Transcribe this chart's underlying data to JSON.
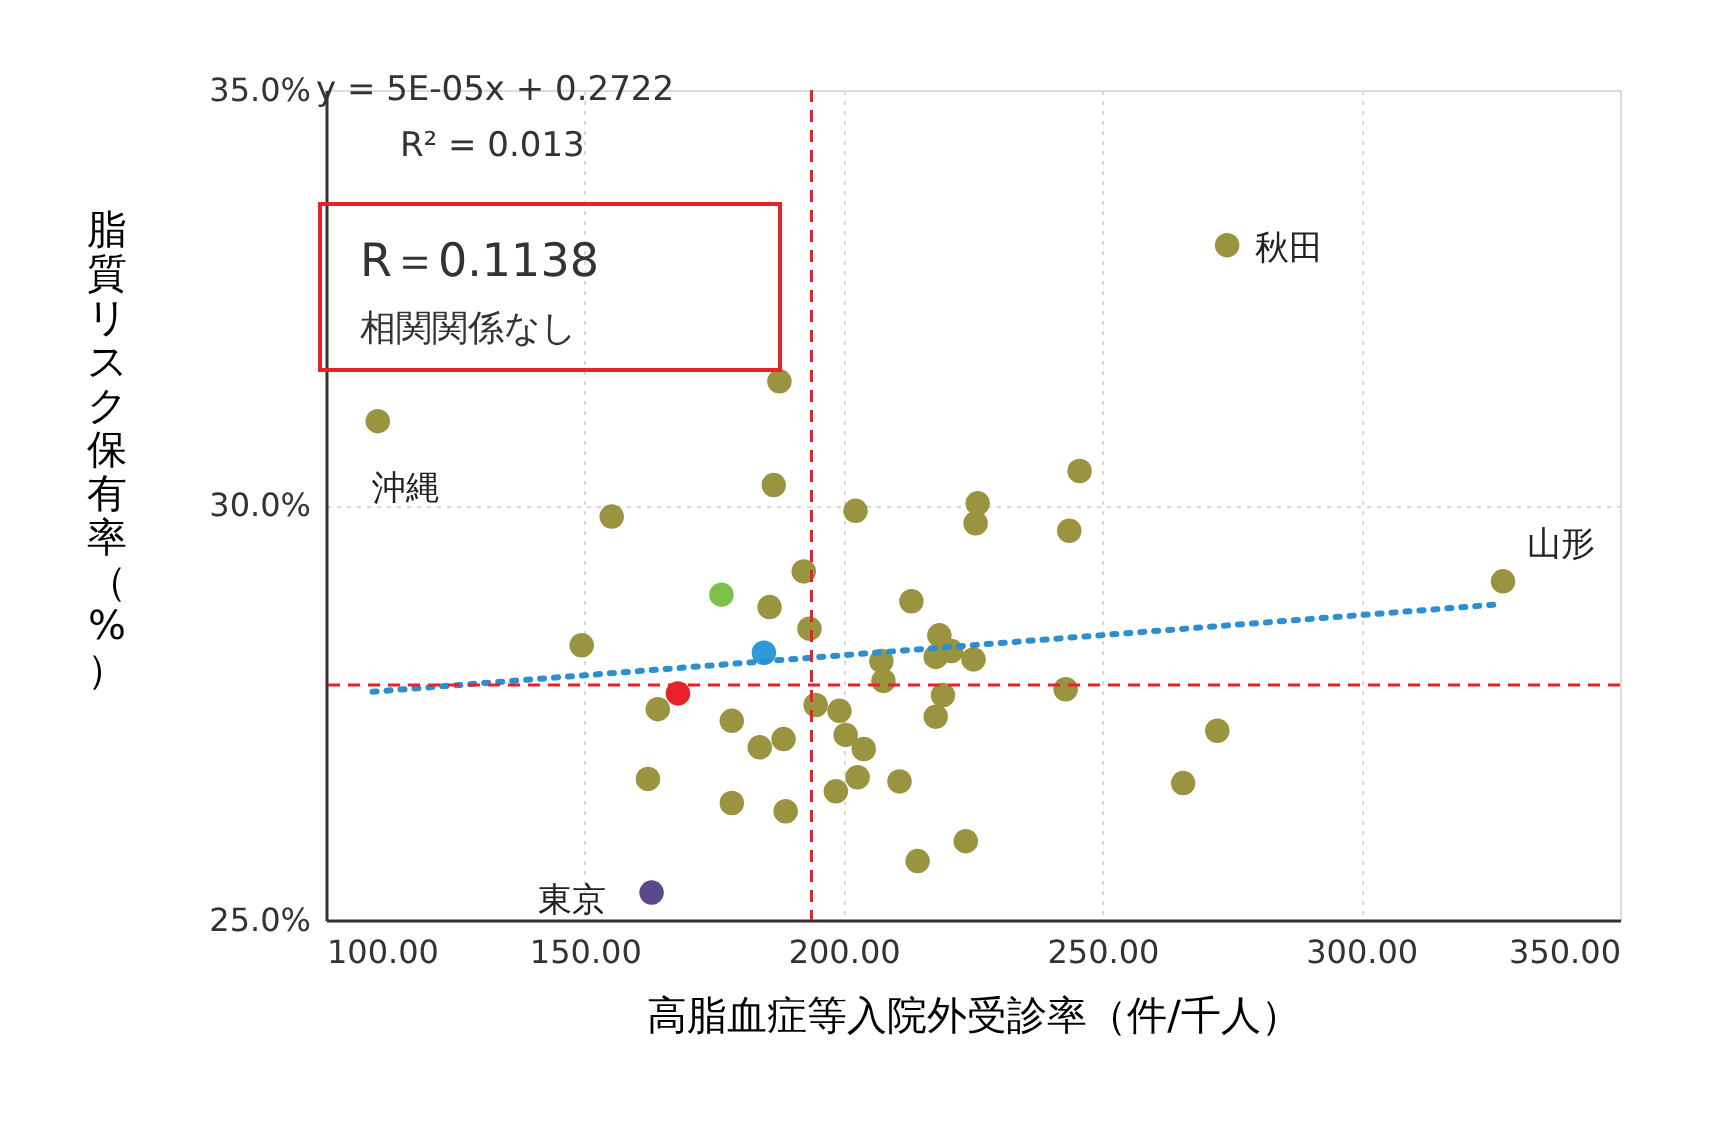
{
  "chart_data": {
    "type": "scatter",
    "xlabel": "高脂血症等入院外受診率（件/千人）",
    "ylabel": "脂質リスク保有率（%）",
    "xlim": [
      100,
      350
    ],
    "ylim": [
      25,
      35
    ],
    "xticks": [
      {
        "value": 100,
        "label": "100.00"
      },
      {
        "value": 150,
        "label": "150.00"
      },
      {
        "value": 200,
        "label": "200.00"
      },
      {
        "value": 250,
        "label": "250.00"
      },
      {
        "value": 300,
        "label": "300.00"
      },
      {
        "value": 350,
        "label": "350.00"
      }
    ],
    "yticks": [
      {
        "value": 25,
        "label": "25.0%"
      },
      {
        "value": 30,
        "label": "30.0%"
      },
      {
        "value": 35,
        "label": "35.0%"
      }
    ],
    "grid": true,
    "series": [
      {
        "marker": "circle",
        "x": [
          274.1,
          110.0,
          187.6,
          186.5,
          155.2,
          202.3,
          225.9,
          225.5,
          245.6,
          243.6,
          327.4,
          176.4,
          185.7,
          192.3,
          193.4,
          213.1,
          149.4,
          184.6,
          218.5,
          220.8,
          217.8,
          225.1,
          207.3,
          207.7,
          168.0,
          164.1,
          178.4,
          194.6,
          199.2,
          219.2,
          217.8,
          242.9,
          183.8,
          188.4,
          200.4,
          203.9,
          162.2,
          178.4,
          188.8,
          198.5,
          202.7,
          210.8,
          272.2,
          265.6,
          214.3,
          223.6,
          162.9
        ],
        "values": [
          33.13,
          31.01,
          31.49,
          30.24,
          29.86,
          29.93,
          30.02,
          29.78,
          30.41,
          29.69,
          29.08,
          28.92,
          28.77,
          29.2,
          28.51,
          28.84,
          28.31,
          28.22,
          28.43,
          28.24,
          28.17,
          28.14,
          28.12,
          27.88,
          27.73,
          27.54,
          27.4,
          27.59,
          27.52,
          27.71,
          27.45,
          27.78,
          27.08,
          27.18,
          27.23,
          27.06,
          26.7,
          26.41,
          26.31,
          26.55,
          26.72,
          26.67,
          27.28,
          26.65,
          25.71,
          25.95,
          25.33
        ],
        "colors": [
          "#9a9440",
          "#9a9440",
          "#9a9440",
          "#9a9440",
          "#9a9440",
          "#9a9440",
          "#9a9440",
          "#9a9440",
          "#9a9440",
          "#9a9440",
          "#9a9440",
          "#7cc04a",
          "#9a9440",
          "#9a9440",
          "#9a9440",
          "#9a9440",
          "#9a9440",
          "#2e9ad8",
          "#9a9440",
          "#9a9440",
          "#9a9440",
          "#9a9440",
          "#9a9440",
          "#9a9440",
          "#e8212a",
          "#9a9440",
          "#9a9440",
          "#9a9440",
          "#9a9440",
          "#9a9440",
          "#9a9440",
          "#9a9440",
          "#9a9440",
          "#9a9440",
          "#9a9440",
          "#9a9440",
          "#9a9440",
          "#9a9440",
          "#9a9440",
          "#9a9440",
          "#9a9440",
          "#9a9440",
          "#9a9440",
          "#9a9440",
          "#9a9440",
          "#9a9440",
          "#5a4a8c"
        ]
      },
      {
        "type": "line",
        "x": [
          109,
          326
        ],
        "values": [
          27.75,
          28.8
        ],
        "color": "#2e8fd0",
        "line_style": "dotted"
      }
    ],
    "ref_lines": [
      {
        "axis": "x",
        "value": 193.8,
        "color": "#e8212a",
        "line_style": "dashed"
      },
      {
        "axis": "y",
        "value": 27.83,
        "color": "#e8212a",
        "line_style": "dashed"
      }
    ],
    "annotations": [
      "y = 5E-05x + 0.2722",
      "R² = 0.013",
      "R＝0.1138",
      "相関関係なし",
      {
        "text": "秋田",
        "x": 274.1,
        "y": 33.13
      },
      {
        "text": "沖縄",
        "x": 110.0,
        "y": 31.01
      },
      {
        "text": "山形",
        "x": 327.4,
        "y": 29.08
      },
      {
        "text": "東京",
        "x": 162.9,
        "y": 25.33
      }
    ]
  }
}
